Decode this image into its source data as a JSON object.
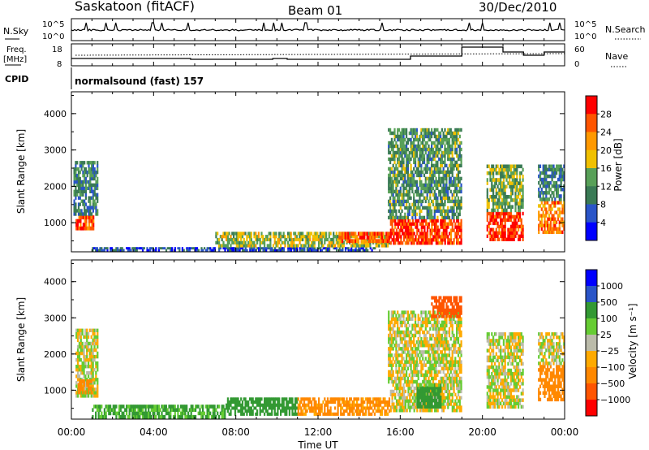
{
  "header": {
    "station": "Saskatoon (fitACF)",
    "beam": "Beam 01",
    "date": "30/Dec/2010"
  },
  "panels": {
    "nsky_label": "N.Sky",
    "nsky_tick_top": "10^5",
    "nsky_tick_bottom": "10^0",
    "nsearch_label": "N.Search",
    "freq_label_top": "Freq.",
    "freq_label_bottom": "[MHz]",
    "freq_ticks": [
      "18",
      "8"
    ],
    "nave_label": "Nave",
    "nave_ticks": [
      "60",
      "0"
    ],
    "cpid_label": "CPID",
    "cpid_text": "normalsound (fast) 157"
  },
  "xaxis": {
    "ticks": [
      "00:00",
      "04:00",
      "08:00",
      "12:00",
      "16:00",
      "20:00",
      "00:00"
    ],
    "label": "Time UT"
  },
  "colors": {
    "power": [
      "#0000ff",
      "#2a55c8",
      "#3a7a55",
      "#58a058",
      "#f0c000",
      "#ff9900",
      "#ff5500",
      "#ff0000"
    ],
    "velocity": [
      "#0000ff",
      "#2a55c8",
      "#339933",
      "#66cc33",
      "#bbbbaa",
      "#ffaa00",
      "#ff8800",
      "#ff5500",
      "#ff0000"
    ]
  },
  "chart_data": [
    {
      "type": "heatmap",
      "name": "power",
      "ylabel": "Slant Range [km]",
      "ylim": [
        200,
        4600
      ],
      "yticks": [
        "1000",
        "2000",
        "3000",
        "4000"
      ],
      "xlim": [
        0,
        24
      ],
      "colorbar_label": "Power [dB]",
      "colorbar_ticks": [
        "4",
        "8",
        "12",
        "16",
        "20",
        "24",
        "28"
      ],
      "regions": [
        {
          "t0": 0.2,
          "t1": 1.1,
          "r0": 800,
          "r1": 1200,
          "v": 26
        },
        {
          "t0": 0.1,
          "t1": 1.3,
          "r0": 1200,
          "r1": 2700,
          "v": 10
        },
        {
          "t0": 1.0,
          "t1": 14.8,
          "r0": 220,
          "r1": 330,
          "v": 6
        },
        {
          "t0": 7.0,
          "t1": 15.5,
          "r0": 330,
          "r1": 750,
          "v": 16
        },
        {
          "t0": 13.0,
          "t1": 15.5,
          "r0": 450,
          "r1": 750,
          "v": 26
        },
        {
          "t0": 15.5,
          "t1": 19.0,
          "r0": 400,
          "r1": 1100,
          "v": 28
        },
        {
          "t0": 15.4,
          "t1": 19.0,
          "r0": 1100,
          "r1": 3600,
          "v": 12
        },
        {
          "t0": 20.2,
          "t1": 22.0,
          "r0": 500,
          "r1": 1300,
          "v": 28
        },
        {
          "t0": 20.2,
          "t1": 22.0,
          "r0": 1300,
          "r1": 2600,
          "v": 14
        },
        {
          "t0": 22.7,
          "t1": 24.0,
          "r0": 700,
          "r1": 1600,
          "v": 24
        },
        {
          "t0": 22.7,
          "t1": 24.0,
          "r0": 1600,
          "r1": 2600,
          "v": 10
        }
      ]
    },
    {
      "type": "heatmap",
      "name": "velocity",
      "ylabel": "Slant Range [km]",
      "ylim": [
        200,
        4600
      ],
      "yticks": [
        "1000",
        "2000",
        "3000",
        "4000"
      ],
      "xlim": [
        0,
        24
      ],
      "colorbar_label": "Velocity [m s⁻¹]",
      "colorbar_ticks": [
        "1000",
        "500",
        "100",
        "25",
        "−25",
        "−100",
        "−500",
        "−1000"
      ],
      "regions": [
        {
          "t0": 0.2,
          "t1": 1.3,
          "r0": 800,
          "r1": 2700,
          "v": 0
        },
        {
          "t0": 0.3,
          "t1": 1.0,
          "r0": 900,
          "r1": 1300,
          "v": -150
        },
        {
          "t0": 1.0,
          "t1": 7.5,
          "r0": 220,
          "r1": 600,
          "v": 80
        },
        {
          "t0": 7.5,
          "t1": 11.0,
          "r0": 300,
          "r1": 800,
          "v": 150
        },
        {
          "t0": 11.0,
          "t1": 15.5,
          "r0": 300,
          "r1": 800,
          "v": -100
        },
        {
          "t0": 15.5,
          "t1": 19.0,
          "r0": 400,
          "r1": 1100,
          "v": 0
        },
        {
          "t0": 16.8,
          "t1": 18.0,
          "r0": 500,
          "r1": 1200,
          "v": 200
        },
        {
          "t0": 15.4,
          "t1": 19.0,
          "r0": 1100,
          "r1": 3200,
          "v": 0
        },
        {
          "t0": 17.5,
          "t1": 19.0,
          "r0": 3000,
          "r1": 3600,
          "v": -400
        },
        {
          "t0": 20.2,
          "t1": 22.0,
          "r0": 500,
          "r1": 2600,
          "v": 0
        },
        {
          "t0": 22.7,
          "t1": 24.0,
          "r0": 700,
          "r1": 1700,
          "v": -150
        },
        {
          "t0": 22.7,
          "t1": 24.0,
          "r0": 1700,
          "r1": 2600,
          "v": 0
        }
      ]
    }
  ]
}
